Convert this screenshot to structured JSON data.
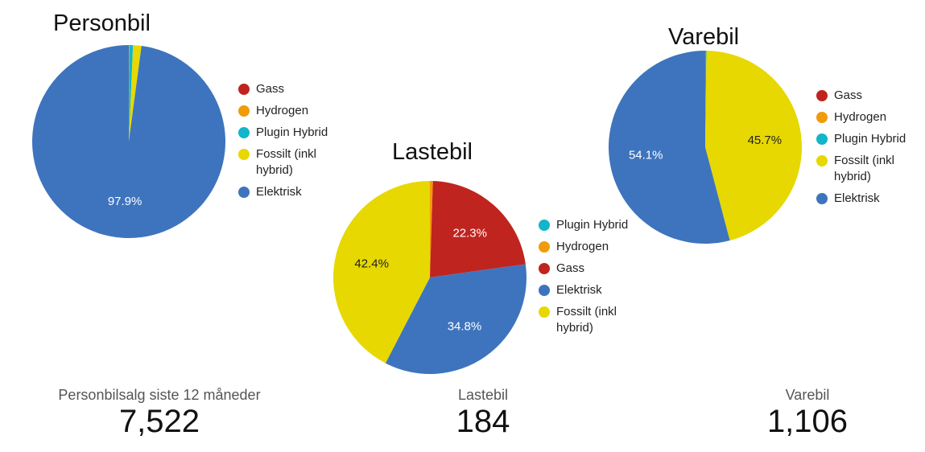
{
  "chart_data": [
    {
      "type": "pie",
      "title": "Personbil",
      "slices": [
        {
          "name": "Gass",
          "value": 0.0,
          "color": "#c0241f",
          "label": ""
        },
        {
          "name": "Hydrogen",
          "value": 0.1,
          "color": "#f29b0a",
          "label": ""
        },
        {
          "name": "Plugin Hybrid",
          "value": 0.6,
          "color": "#12b5c9",
          "label": ""
        },
        {
          "name": "Fossilt (inkl hybrid)",
          "value": 1.4,
          "color": "#e6d800",
          "label": ""
        },
        {
          "name": "Elektrisk",
          "value": 97.9,
          "color": "#3e74bd",
          "label": "97.9%"
        }
      ],
      "legend": [
        "Gass",
        "Hydrogen",
        "Plugin Hybrid",
        "Fossilt (inkl hybrid)",
        "Elektrisk"
      ],
      "legend_position": "right"
    },
    {
      "type": "pie",
      "title": "Lastebil",
      "slices": [
        {
          "name": "Plugin Hybrid",
          "value": 0.0,
          "color": "#12b5c9",
          "label": ""
        },
        {
          "name": "Hydrogen",
          "value": 0.5,
          "color": "#f29b0a",
          "label": ""
        },
        {
          "name": "Gass",
          "value": 22.3,
          "color": "#c0241f",
          "label": "22.3%"
        },
        {
          "name": "Elektrisk",
          "value": 34.8,
          "color": "#3e74bd",
          "label": "34.8%"
        },
        {
          "name": "Fossilt (inkl hybrid)",
          "value": 42.4,
          "color": "#e6d800",
          "label": "42.4%"
        }
      ],
      "legend": [
        "Plugin Hybrid",
        "Hydrogen",
        "Gass",
        "Elektrisk",
        "Fossilt (inkl hybrid)"
      ],
      "legend_position": "right"
    },
    {
      "type": "pie",
      "title": "Varebil",
      "slices": [
        {
          "name": "Gass",
          "value": 0.0,
          "color": "#c0241f",
          "label": ""
        },
        {
          "name": "Hydrogen",
          "value": 0.0,
          "color": "#f29b0a",
          "label": ""
        },
        {
          "name": "Plugin Hybrid",
          "value": 0.2,
          "color": "#12b5c9",
          "label": ""
        },
        {
          "name": "Fossilt (inkl hybrid)",
          "value": 45.7,
          "color": "#e6d800",
          "label": "45.7%"
        },
        {
          "name": "Elektrisk",
          "value": 54.1,
          "color": "#3e74bd",
          "label": "54.1%"
        }
      ],
      "legend": [
        "Gass",
        "Hydrogen",
        "Plugin Hybrid",
        "Fossilt (inkl hybrid)",
        "Elektrisk"
      ],
      "legend_position": "right"
    }
  ],
  "kpis": [
    {
      "label": "Personbilsalg siste 12 måneder",
      "value": "7,522"
    },
    {
      "label": "Lastebil",
      "value": "184"
    },
    {
      "label": "Varebil",
      "value": "1,106"
    }
  ]
}
